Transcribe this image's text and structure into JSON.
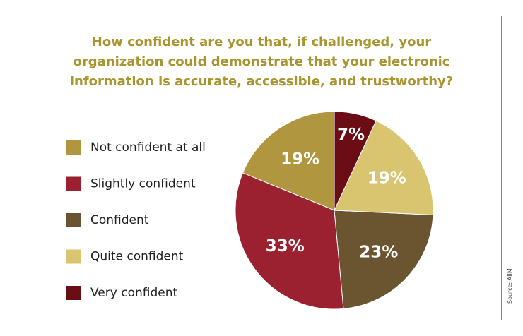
{
  "chart_data": {
    "type": "pie",
    "title": "How confident are you that, if challenged, your organization could demonstrate that your electronic information is accurate, accessible, and trustworthy?",
    "categories": [
      "Not confident at all",
      "Slightly confident",
      "Confident",
      "Quite confident",
      "Very confident"
    ],
    "values": [
      19,
      33,
      23,
      19,
      7
    ],
    "value_labels": [
      "19%",
      "33%",
      "23%",
      "19%",
      "7%"
    ],
    "colors": [
      "#b0973f",
      "#9b2030",
      "#6b5430",
      "#d9c56f",
      "#6b0d15"
    ],
    "legend": "left",
    "source": "Source: AIIM"
  }
}
